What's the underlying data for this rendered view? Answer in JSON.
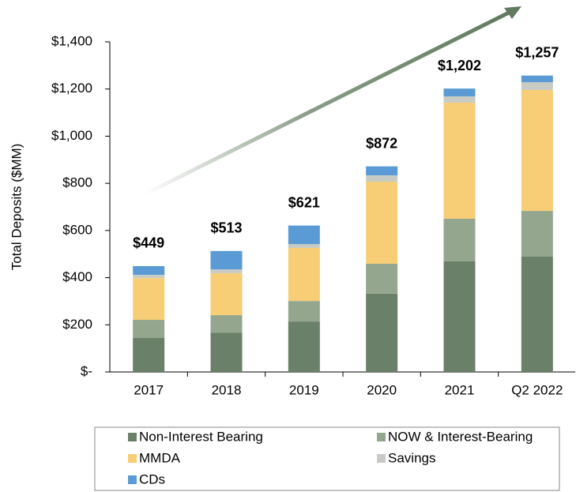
{
  "chart_data": {
    "type": "stacked_bar",
    "y_label": "Total Deposits ($MM)",
    "categories": [
      "2017",
      "2018",
      "2019",
      "2020",
      "2021",
      "Q2 2022"
    ],
    "series": [
      {
        "name": "Non-Interest Bearing",
        "color": "#6b8068",
        "values": [
          144,
          167,
          214,
          332,
          469,
          489
        ]
      },
      {
        "name": "NOW & Interest-Bearing",
        "color": "#95a68f",
        "values": [
          77,
          74,
          87,
          127,
          181,
          194
        ]
      },
      {
        "name": "MMDA",
        "color": "#f7cd76",
        "values": [
          177,
          178,
          225,
          348,
          492,
          513
        ]
      },
      {
        "name": "Savings",
        "color": "#c8cbc3",
        "values": [
          14,
          16,
          16,
          27,
          27,
          33
        ]
      },
      {
        "name": "CDs",
        "color": "#5b9bd5",
        "values": [
          37,
          78,
          79,
          38,
          33,
          28
        ]
      }
    ],
    "totals": [
      449,
      513,
      621,
      872,
      1202,
      1257
    ],
    "total_labels": [
      "$449",
      "$513",
      "$621",
      "$872",
      "$1,202",
      "$1,257"
    ],
    "ylim": [
      0,
      1400
    ],
    "yticks": [
      {
        "value": 0,
        "label": "$-"
      },
      {
        "value": 200,
        "label": "$200"
      },
      {
        "value": 400,
        "label": "$400"
      },
      {
        "value": 600,
        "label": "$600"
      },
      {
        "value": 800,
        "label": "$800"
      },
      {
        "value": 1000,
        "label": "$1,000"
      },
      {
        "value": 1200,
        "label": "$1,200"
      },
      {
        "value": 1400,
        "label": "$1,400"
      }
    ]
  }
}
